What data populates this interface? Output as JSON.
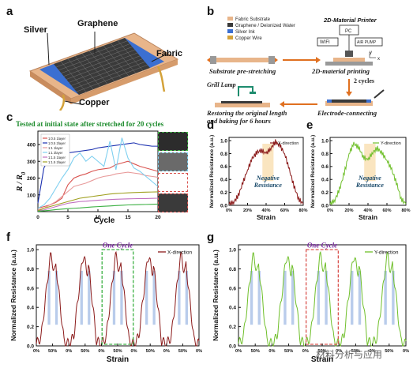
{
  "panels": {
    "a": "a",
    "b": "b",
    "c": "c",
    "d": "d",
    "e": "e",
    "f": "f",
    "g": "g"
  },
  "panel_a": {
    "labels": {
      "silver": "Silver",
      "graphene": "Graphene",
      "fabric": "Fabric",
      "copper": "Copper"
    }
  },
  "panel_b": {
    "printer_title": "2D-Material Printer",
    "legend": [
      "Fabric Substrate",
      "Graphene / Deionized Water",
      "Silver Ink",
      "Copper Wire"
    ],
    "box_pc": "PC",
    "box_wifi": "WIFI",
    "box_pump": "AIR PUMP",
    "axis_x": "x",
    "axis_y": "y",
    "steps": {
      "pre_stretch": "Substrate pre-stretching",
      "printing": "2D-material printing",
      "restore_line1": "Restoring the original length",
      "restore_line2": "and baking for 6 hours",
      "electrode": "Electrode-connecting",
      "grill": "Grill Lamp",
      "cycles": "2 cycles"
    },
    "colors": {
      "fabric": "#e8b58a",
      "graphene": "#3a3a3a",
      "silver": "#3b6fd1",
      "copper": "#d4a23a",
      "arrow": "#e07020"
    }
  },
  "chart_data": [
    {
      "panel": "c",
      "type": "line",
      "title": "Tested at initial state after stretched for 20 cycles",
      "xlabel": "Cycle",
      "ylabel": "R/R0",
      "ylabel_main": "R / R",
      "ylabel_sub": "0",
      "xlim": [
        0,
        20
      ],
      "ylim": [
        0,
        480
      ],
      "xticks": [
        "0",
        "5",
        "10",
        "15",
        "20"
      ],
      "yticks": [
        "100",
        "200",
        "300",
        "400"
      ],
      "legend_placement": "top-left",
      "series": [
        {
          "name": "1:0.5 1layer",
          "color": "#d9534f",
          "x": [
            0,
            1,
            2,
            3,
            4,
            5,
            6,
            7,
            8,
            9,
            10,
            11,
            12,
            13,
            14,
            15,
            16,
            17,
            18,
            19,
            20
          ],
          "values": [
            20,
            30,
            40,
            55,
            80,
            160,
            200,
            215,
            225,
            240,
            250,
            255,
            260,
            280,
            290,
            300,
            285,
            270,
            260,
            250,
            240
          ]
        },
        {
          "name": "1:0.5 2layer",
          "color": "#1a2fb0",
          "x": [
            0,
            1,
            2,
            3,
            4,
            5,
            6,
            7,
            8,
            9,
            10,
            11,
            12,
            13,
            14,
            15,
            16,
            17,
            18,
            19,
            20
          ],
          "values": [
            50,
            260,
            330,
            340,
            345,
            350,
            355,
            360,
            365,
            370,
            380,
            385,
            390,
            395,
            400,
            405,
            410,
            400,
            395,
            390,
            390
          ]
        },
        {
          "name": "1:1 1layer",
          "color": "#e89a9a",
          "x": [
            0,
            1,
            2,
            3,
            4,
            5,
            6,
            7,
            8,
            9,
            10,
            11,
            12,
            13,
            14,
            15,
            16,
            17,
            18,
            19,
            20
          ],
          "values": [
            10,
            20,
            40,
            60,
            90,
            120,
            150,
            160,
            170,
            185,
            200,
            210,
            215,
            225,
            230,
            235,
            230,
            225,
            215,
            210,
            205
          ]
        },
        {
          "name": "1:1 2layer",
          "color": "#7fd0f0",
          "x": [
            0,
            1,
            2,
            3,
            4,
            5,
            6,
            7,
            8,
            9,
            10,
            11,
            12,
            13,
            14,
            15,
            16,
            17,
            18,
            19,
            20
          ],
          "values": [
            20,
            40,
            80,
            140,
            200,
            250,
            320,
            350,
            300,
            330,
            300,
            270,
            420,
            250,
            440,
            320,
            260,
            240,
            210,
            180,
            150
          ]
        },
        {
          "name": "1:1.5 1layer",
          "color": "#c070c0",
          "x": [
            0,
            1,
            2,
            3,
            4,
            5,
            6,
            7,
            8,
            9,
            10,
            11,
            12,
            13,
            14,
            15,
            16,
            17,
            18,
            19,
            20
          ],
          "values": [
            5,
            10,
            20,
            30,
            40,
            50,
            55,
            60,
            62,
            65,
            68,
            70,
            72,
            74,
            75,
            76,
            77,
            78,
            78,
            79,
            80
          ]
        },
        {
          "name": "1:1.5 2layer",
          "color": "#a0a020",
          "x": [
            0,
            1,
            2,
            3,
            4,
            5,
            6,
            7,
            8,
            9,
            10,
            11,
            12,
            13,
            14,
            15,
            16,
            17,
            18,
            19,
            20
          ],
          "values": [
            5,
            20,
            30,
            40,
            50,
            60,
            70,
            80,
            85,
            90,
            95,
            100,
            105,
            108,
            110,
            112,
            114,
            115,
            116,
            117,
            118
          ]
        },
        {
          "name": "",
          "color": "#3cb043",
          "x": [
            0,
            1,
            2,
            3,
            4,
            5,
            6,
            7,
            8,
            9,
            10,
            11,
            12,
            13,
            14,
            15,
            16,
            17,
            18,
            19,
            20
          ],
          "values": [
            2,
            5,
            8,
            12,
            15,
            18,
            20,
            22,
            25,
            28,
            30,
            32,
            34,
            36,
            38,
            40,
            41,
            42,
            43,
            44,
            45
          ]
        }
      ]
    },
    {
      "panel": "d",
      "type": "line",
      "xlabel": "Strain",
      "ylabel": "Normalized Resistance (a.u.)",
      "legend": "X-direction",
      "annotation_line1": "Negative",
      "annotation_line2": "Resistance",
      "xticks": [
        "0%",
        "20%",
        "40%",
        "60%",
        "80%"
      ],
      "yticks": [
        "0.0",
        "0.2",
        "0.4",
        "0.6",
        "0.8",
        "1.0"
      ],
      "ylim": [
        0,
        1.05
      ],
      "color": "#8b1a1a",
      "x": [
        0,
        5,
        10,
        15,
        20,
        25,
        30,
        35,
        40,
        45,
        50,
        55,
        60,
        65,
        70,
        75,
        80
      ],
      "values": [
        0.02,
        0.05,
        0.15,
        0.35,
        0.55,
        0.72,
        0.82,
        0.85,
        0.8,
        0.88,
        0.98,
        0.92,
        0.8,
        0.55,
        0.3,
        0.1,
        0.02
      ]
    },
    {
      "panel": "e",
      "type": "line",
      "xlabel": "Strain",
      "ylabel": "Normalized Resistance (a.u.)",
      "legend": "Y-direction",
      "annotation_line1": "Negative",
      "annotation_line2": "Resistance",
      "xticks": [
        "0%",
        "20%",
        "40%",
        "60%",
        "80%"
      ],
      "yticks": [
        "0.0",
        "0.2",
        "0.4",
        "0.6",
        "0.8",
        "1.0"
      ],
      "ylim": [
        0,
        1.05
      ],
      "color": "#6fbf2a",
      "x": [
        0,
        5,
        10,
        15,
        20,
        25,
        30,
        35,
        40,
        45,
        50,
        55,
        60,
        65,
        70,
        75,
        80
      ],
      "values": [
        0.02,
        0.08,
        0.25,
        0.5,
        0.8,
        0.95,
        0.9,
        0.75,
        0.7,
        0.82,
        0.88,
        0.8,
        0.7,
        0.55,
        0.35,
        0.1,
        0.02
      ]
    },
    {
      "panel": "f",
      "type": "line",
      "xlabel": "Strain",
      "ylabel": "Normalized Resistance (a.u.)",
      "legend": "X-direction",
      "annotation": "One Cycle",
      "xticks": [
        "0%",
        "50%",
        "0%",
        "50%",
        "0%",
        "50%",
        "0%",
        "50%",
        "0%",
        "50%",
        "0%"
      ],
      "yticks": [
        "0.0",
        "0.2",
        "0.4",
        "0.6",
        "0.8",
        "1.0"
      ],
      "ylim": [
        0,
        1.05
      ],
      "cycles": 5,
      "color": "#8b1a1a"
    },
    {
      "panel": "g",
      "type": "line",
      "xlabel": "Strain",
      "ylabel": "Normalized Resistance (a.u.)",
      "legend": "Y-direction",
      "annotation": "One Cycle",
      "xticks": [
        "0%",
        "50%",
        "0%",
        "50%",
        "0%",
        "50%",
        "0%",
        "50%",
        "0%",
        "50%",
        "0%"
      ],
      "yticks": [
        "0.0",
        "0.2",
        "0.4",
        "0.6",
        "0.8",
        "1.0"
      ],
      "ylim": [
        0,
        1.05
      ],
      "cycles": 5,
      "color": "#6fbf2a"
    }
  ],
  "watermark": "材料分析与应用"
}
